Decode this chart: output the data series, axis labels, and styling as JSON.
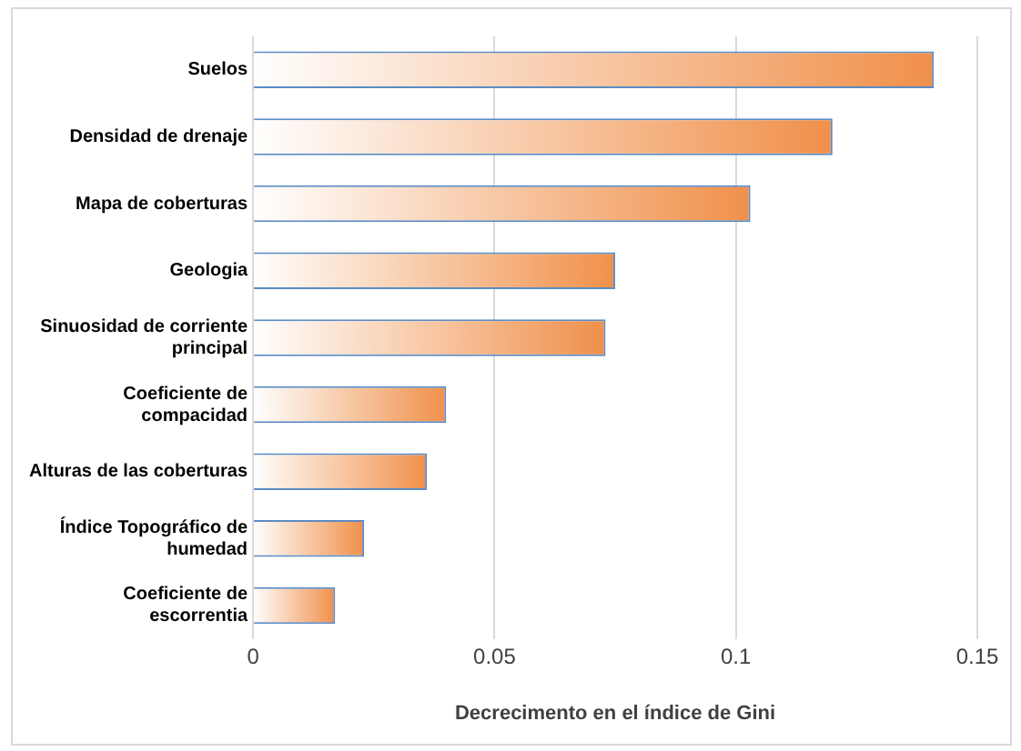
{
  "chart_data": {
    "type": "bar",
    "orientation": "horizontal",
    "xlabel": "Decrecimento en el índice de Gini",
    "categories": [
      "Suelos",
      "Densidad de drenaje",
      "Mapa de coberturas",
      "Geologia",
      "Sinuosidad de corriente principal",
      "Coeficiente de compacidad",
      "Alturas de las coberturas",
      "Índice Topográfico de humedad",
      "Coeficiente de escorrentia"
    ],
    "values": [
      0.141,
      0.12,
      0.103,
      0.075,
      0.073,
      0.04,
      0.036,
      0.023,
      0.017
    ],
    "color": "#f0904a",
    "xlim": [
      0,
      0.15
    ],
    "xticks": [
      0,
      0.05,
      0.1,
      0.15
    ],
    "grid": "x",
    "legend": false
  }
}
